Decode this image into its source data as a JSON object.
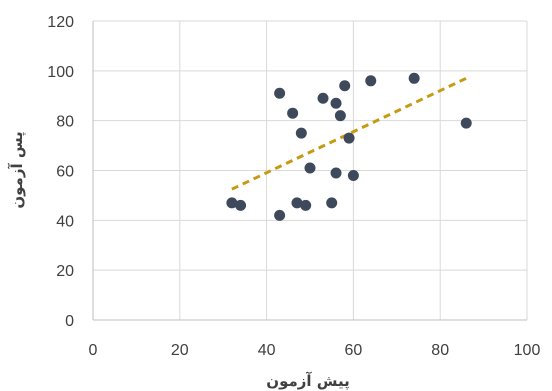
{
  "chart_data": {
    "type": "scatter",
    "xlabel": "پیش آزمون",
    "ylabel": "پس آزمون",
    "xlim": [
      0,
      100
    ],
    "ylim": [
      0,
      120
    ],
    "x_ticks": [
      0,
      20,
      40,
      60,
      80,
      100
    ],
    "y_ticks": [
      0,
      20,
      40,
      60,
      80,
      100,
      120
    ],
    "grid": true,
    "series": [
      {
        "points": [
          {
            "x": 32,
            "y": 47
          },
          {
            "x": 34,
            "y": 46
          },
          {
            "x": 43,
            "y": 91
          },
          {
            "x": 43,
            "y": 42
          },
          {
            "x": 46,
            "y": 83
          },
          {
            "x": 47,
            "y": 47
          },
          {
            "x": 48,
            "y": 75
          },
          {
            "x": 49,
            "y": 46
          },
          {
            "x": 50,
            "y": 61
          },
          {
            "x": 53,
            "y": 89
          },
          {
            "x": 55,
            "y": 47
          },
          {
            "x": 56,
            "y": 87
          },
          {
            "x": 56,
            "y": 59
          },
          {
            "x": 57,
            "y": 82
          },
          {
            "x": 58,
            "y": 94
          },
          {
            "x": 59,
            "y": 73
          },
          {
            "x": 60,
            "y": 58
          },
          {
            "x": 64,
            "y": 96
          },
          {
            "x": 74,
            "y": 97
          },
          {
            "x": 86,
            "y": 79
          }
        ]
      }
    ],
    "trendline": {
      "type": "linear",
      "style": "dashed",
      "x_start": 32,
      "y_start": 52.5,
      "x_end": 86,
      "y_end": 97
    }
  },
  "colors": {
    "marker": "#3e4a5c",
    "trendline": "#c69a12"
  }
}
